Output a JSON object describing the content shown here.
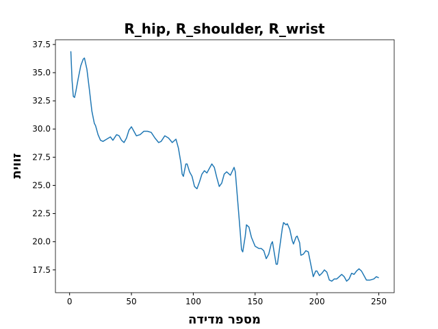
{
  "chart_data": {
    "type": "line",
    "title": "R_hip, R_shoulder, R_wrist",
    "x_label": "מספר מדידה",
    "y_label": "זווית",
    "color": "#1f77b4",
    "x": [
      1,
      2,
      3,
      4,
      5,
      7,
      9,
      11,
      12,
      14,
      16,
      18,
      20,
      21,
      23,
      25,
      27,
      30,
      33,
      35,
      38,
      40,
      42,
      44,
      46,
      48,
      50,
      52,
      54,
      57,
      60,
      63,
      66,
      69,
      72,
      74,
      77,
      80,
      83,
      86,
      88,
      90,
      91,
      92,
      94,
      95,
      97,
      99,
      101,
      103,
      105,
      107,
      109,
      111,
      113,
      115,
      117,
      119,
      121,
      123,
      125,
      127,
      130,
      133,
      134,
      136,
      138,
      139,
      140,
      142,
      143,
      145,
      147,
      150,
      153,
      155,
      157,
      159,
      161,
      163,
      164,
      167,
      168,
      170,
      172,
      173,
      175,
      176,
      178,
      180,
      181,
      183,
      184,
      186,
      187,
      189,
      191,
      193,
      195,
      197,
      199,
      200,
      202,
      204,
      206,
      208,
      210,
      212,
      214,
      216,
      218,
      220,
      222,
      224,
      226,
      228,
      230,
      232,
      234,
      236,
      238,
      240,
      243,
      246,
      248,
      250
    ],
    "values": [
      36.9,
      34.3,
      32.9,
      32.8,
      33.3,
      34.5,
      35.6,
      36.2,
      36.3,
      35.3,
      33.5,
      31.6,
      30.5,
      30.3,
      29.5,
      29.0,
      28.9,
      29.1,
      29.3,
      29.0,
      29.5,
      29.4,
      29.0,
      28.8,
      29.2,
      29.9,
      30.2,
      29.8,
      29.4,
      29.5,
      29.8,
      29.8,
      29.7,
      29.2,
      28.8,
      28.9,
      29.4,
      29.2,
      28.8,
      29.1,
      28.3,
      27.0,
      26.0,
      25.8,
      26.9,
      26.9,
      26.2,
      25.8,
      24.9,
      24.7,
      25.3,
      26.0,
      26.3,
      26.1,
      26.5,
      26.9,
      26.6,
      25.7,
      24.9,
      25.2,
      26.0,
      26.2,
      25.9,
      26.6,
      26.2,
      23.5,
      20.8,
      19.3,
      19.1,
      20.5,
      21.5,
      21.3,
      20.4,
      19.6,
      19.4,
      19.4,
      19.2,
      18.5,
      18.9,
      19.8,
      20.0,
      18.0,
      18.0,
      19.6,
      21.2,
      21.7,
      21.5,
      21.6,
      21.1,
      20.1,
      19.8,
      20.4,
      20.5,
      19.9,
      18.8,
      18.9,
      19.2,
      19.1,
      18.0,
      16.9,
      17.4,
      17.4,
      17.0,
      17.2,
      17.5,
      17.3,
      16.6,
      16.5,
      16.7,
      16.7,
      16.9,
      17.1,
      16.9,
      16.5,
      16.7,
      17.2,
      17.1,
      17.4,
      17.6,
      17.4,
      17.0,
      16.6,
      16.6,
      16.7,
      16.9,
      16.8
    ],
    "xlim": [
      -11.45,
      262.45
    ],
    "ylim": [
      15.48,
      37.92
    ],
    "xticks": [
      0,
      50,
      100,
      150,
      200,
      250
    ],
    "yticks": [
      17.5,
      {
        "value": 20,
        "label": "20.0"
      },
      22.5,
      {
        "value": 25,
        "label": "25.0"
      },
      27.5,
      {
        "value": 30,
        "label": "30.0"
      },
      32.5,
      {
        "value": 35,
        "label": "35.0"
      },
      37.5
    ]
  }
}
